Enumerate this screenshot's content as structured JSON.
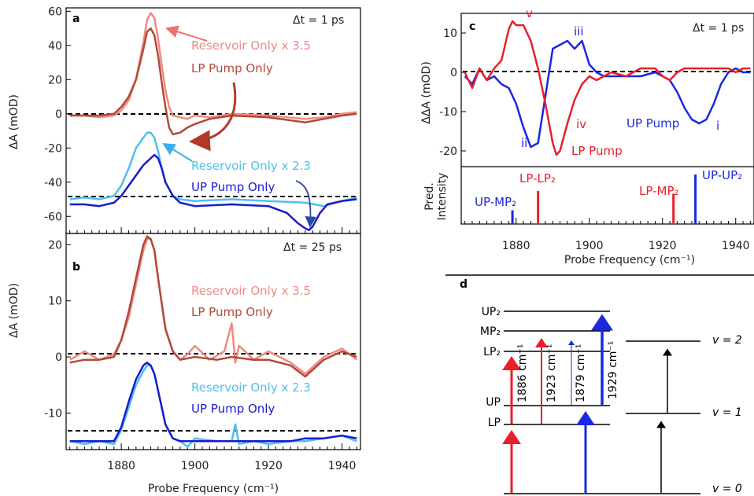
{
  "colors": {
    "res_lp": "#f08a82",
    "lp_pump": "#b04a38",
    "res_up": "#4ec0ee",
    "up_pump": "#1a1ad0",
    "red": "#e8202a",
    "blue": "#1a28e0",
    "brown_arrow": "#b03a28",
    "navy_arrow": "#2a4a9a",
    "lightblue_arrow": "#3ab0e8",
    "pink_arrow": "#f07070"
  },
  "panel_a": {
    "letter": "a",
    "time": "Δt = 1 ps",
    "ylabel": "ΔA (mOD)",
    "ann_res_lp": "Reservoir Only x 3.5",
    "ann_lp": "LP Pump Only",
    "ann_res_up": "Reservoir Only x 2.3",
    "ann_up": "UP Pump Only"
  },
  "panel_b": {
    "letter": "b",
    "time": "Δt = 25 ps",
    "ylabel": "ΔA (mOD)",
    "ann_res_lp": "Reservoir Only x 3.5",
    "ann_lp": "LP Pump Only",
    "ann_res_up": "Reservoir Only x 2.3",
    "ann_up": "UP Pump Only",
    "xlabel": "Probe Frequency (cm⁻¹)"
  },
  "panel_c": {
    "letter": "c",
    "time": "Δt = 1 ps",
    "ylabel": "ΔΔA (mOD)",
    "ylabel2_line1": "Pred.",
    "ylabel2_line2": "Intensity",
    "xlabel": "Probe Frequency (cm⁻¹)",
    "ann_up": "UP Pump",
    "ann_lp": "LP Pump",
    "roman_i": "i",
    "roman_ii": "ii",
    "roman_iii": "iii",
    "roman_iv": "iv",
    "roman_v": "v",
    "stick_up_mp2": "UP-MP₂",
    "stick_lp_lp2": "LP-LP₂",
    "stick_lp_mp2": "LP-MP₂",
    "stick_up_up2": "UP-UP₂"
  },
  "panel_d": {
    "letter": "d",
    "levels": [
      "UP₂",
      "MP₂",
      "LP₂",
      "UP",
      "LP"
    ],
    "v_labels": [
      "v = 2",
      "v = 1",
      "v = 0"
    ],
    "trans": [
      "1886 cm⁻¹",
      "1923 cm⁻¹",
      "1879 cm⁻¹",
      "1929 cm⁻¹"
    ]
  },
  "ticks": {
    "a_y": [
      "60",
      "40",
      "20",
      "0",
      "-20",
      "-40",
      "-60"
    ],
    "b_y": [
      "20",
      "10",
      "0",
      "-10"
    ],
    "c_y": [
      "10",
      "0",
      "-10",
      "-20"
    ],
    "x": [
      "1880",
      "1900",
      "1920",
      "1940"
    ]
  },
  "chart_data": [
    {
      "type": "line",
      "title": "Δt = 1 ps",
      "ylabel": "ΔA (mOD)",
      "xlim": [
        1865,
        1945
      ],
      "ylim": [
        -70,
        62
      ],
      "series": [
        {
          "name": "Reservoir Only x 3.5",
          "x": [
            1866,
            1870,
            1874,
            1878,
            1880,
            1882,
            1884,
            1886,
            1887,
            1888,
            1889,
            1890,
            1891,
            1892,
            1893,
            1894,
            1896,
            1898,
            1900,
            1904,
            1910,
            1920,
            1930,
            1935,
            1940,
            1944
          ],
          "y": [
            -1,
            -1,
            -2,
            -1,
            2,
            8,
            20,
            42,
            55,
            59,
            56,
            44,
            28,
            14,
            4,
            -1,
            -2,
            -3,
            -1,
            -2,
            0,
            -1,
            -3,
            -2,
            0,
            1
          ]
        },
        {
          "name": "LP Pump Only",
          "x": [
            1866,
            1870,
            1874,
            1878,
            1880,
            1882,
            1884,
            1886,
            1887,
            1888,
            1889,
            1890,
            1891,
            1892,
            1893,
            1894,
            1896,
            1898,
            1900,
            1904,
            1910,
            1920,
            1930,
            1935,
            1940,
            1944
          ],
          "y": [
            -1,
            -1,
            -1,
            0,
            4,
            10,
            20,
            38,
            48,
            50,
            46,
            34,
            18,
            4,
            -8,
            -12,
            -11,
            -8,
            -6,
            -3,
            -1,
            -2,
            -5,
            -3,
            -1,
            0
          ]
        },
        {
          "name": "Reservoir Only x 2.3",
          "x": [
            1866,
            1870,
            1874,
            1878,
            1880,
            1882,
            1884,
            1886,
            1887,
            1888,
            1889,
            1890,
            1891,
            1892,
            1894,
            1896,
            1900,
            1910,
            1920,
            1930,
            1935,
            1940,
            1944
          ],
          "y": [
            -50,
            -49,
            -50,
            -48,
            -42,
            -32,
            -20,
            -14,
            -11,
            -11,
            -14,
            -22,
            -32,
            -40,
            -48,
            -50,
            -51,
            -50,
            -51,
            -52,
            -54,
            -51,
            -49
          ]
        },
        {
          "name": "UP Pump Only",
          "x": [
            1866,
            1870,
            1874,
            1878,
            1880,
            1882,
            1884,
            1886,
            1888,
            1889,
            1890,
            1891,
            1892,
            1894,
            1896,
            1900,
            1910,
            1920,
            1925,
            1928,
            1930,
            1931,
            1932,
            1934,
            1936,
            1940,
            1944
          ],
          "y": [
            -53,
            -53,
            -54,
            -52,
            -48,
            -42,
            -36,
            -30,
            -26,
            -24,
            -26,
            -32,
            -40,
            -48,
            -52,
            -54,
            -53,
            -54,
            -58,
            -64,
            -67,
            -68,
            -66,
            -58,
            -53,
            -51,
            -50
          ]
        }
      ]
    },
    {
      "type": "line",
      "title": "Δt = 25 ps",
      "ylabel": "ΔA (mOD)",
      "xlim": [
        1865,
        1945
      ],
      "ylim": [
        -16.5,
        22
      ],
      "series": [
        {
          "name": "Reservoir Only x 3.5",
          "x": [
            1866,
            1870,
            1874,
            1878,
            1880,
            1882,
            1884,
            1886,
            1887,
            1888,
            1889,
            1890,
            1892,
            1894,
            1896,
            1898,
            1900,
            1904,
            1908,
            1910,
            1911,
            1912,
            1916,
            1920,
            1926,
            1930,
            1935,
            1940,
            1944
          ],
          "y": [
            -0.5,
            1,
            -0.5,
            0.5,
            3,
            7,
            13,
            19,
            21,
            21,
            19,
            14,
            5,
            1,
            -0.5,
            0.5,
            2,
            -0.5,
            1,
            6,
            -1,
            2,
            -0.5,
            1,
            -1,
            -3,
            0,
            1.5,
            -0.5
          ]
        },
        {
          "name": "LP Pump Only",
          "x": [
            1866,
            1870,
            1874,
            1878,
            1880,
            1882,
            1884,
            1886,
            1887,
            1888,
            1889,
            1890,
            1892,
            1894,
            1896,
            1900,
            1906,
            1910,
            1916,
            1920,
            1926,
            1930,
            1935,
            1940,
            1944
          ],
          "y": [
            -1,
            -0.5,
            -0.5,
            0,
            3,
            8,
            14,
            20,
            21.5,
            21,
            19,
            14,
            5,
            1,
            -0.5,
            0,
            -0.5,
            0,
            -0.5,
            -0.5,
            -1.5,
            -3.5,
            -0.5,
            1,
            0
          ]
        },
        {
          "name": "Reservoir Only x 2.3",
          "x": [
            1866,
            1870,
            1874,
            1878,
            1880,
            1882,
            1884,
            1886,
            1887,
            1888,
            1889,
            1890,
            1892,
            1894,
            1896,
            1898,
            1900,
            1906,
            1910,
            1911,
            1912,
            1916,
            1920,
            1926,
            1930,
            1935,
            1940,
            1944
          ],
          "y": [
            -15,
            -15.5,
            -15,
            -15.5,
            -13,
            -9,
            -5,
            -2.5,
            -1.5,
            -1.5,
            -3,
            -6,
            -12,
            -14.5,
            -15,
            -16,
            -14.5,
            -15,
            -15,
            -12,
            -15.5,
            -15,
            -15.5,
            -15,
            -15,
            -14.5,
            -14,
            -15
          ]
        },
        {
          "name": "UP Pump Only",
          "x": [
            1866,
            1870,
            1874,
            1878,
            1880,
            1882,
            1884,
            1886,
            1887,
            1888,
            1889,
            1890,
            1892,
            1894,
            1896,
            1900,
            1906,
            1910,
            1916,
            1920,
            1926,
            1930,
            1935,
            1940,
            1944
          ],
          "y": [
            -15,
            -15,
            -15,
            -15,
            -12.5,
            -8,
            -4,
            -1.5,
            -1,
            -1.5,
            -3,
            -6,
            -12,
            -14.5,
            -15,
            -15,
            -15,
            -15,
            -15,
            -15,
            -15,
            -14.5,
            -14.5,
            -14,
            -14.5
          ]
        }
      ]
    },
    {
      "type": "line",
      "title": "Δt = 1 ps",
      "ylabel": "ΔΔA (mOD)",
      "xlim": [
        1865,
        1945
      ],
      "ylim": [
        -24,
        15
      ],
      "series": [
        {
          "name": "UP Pump",
          "x": [
            1866,
            1868,
            1870,
            1872,
            1874,
            1876,
            1878,
            1880,
            1882,
            1884,
            1886,
            1888,
            1890,
            1892,
            1894,
            1896,
            1898,
            1900,
            1902,
            1904,
            1906,
            1910,
            1914,
            1918,
            1920,
            1922,
            1924,
            1926,
            1928,
            1930,
            1932,
            1934,
            1936,
            1938,
            1940,
            1942,
            1944
          ],
          "y": [
            -1,
            -3,
            1,
            -2,
            -1,
            -3,
            -4,
            -8,
            -14,
            -19,
            -18,
            -6,
            6,
            7,
            8,
            6,
            8,
            2,
            0,
            -1,
            -1,
            -1,
            -1,
            0,
            -1,
            -2,
            -5,
            -9,
            -12,
            -13,
            -12,
            -8,
            -3,
            0,
            1,
            0,
            0
          ]
        },
        {
          "name": "LP Pump",
          "x": [
            1866,
            1868,
            1870,
            1872,
            1874,
            1876,
            1878,
            1879,
            1880,
            1882,
            1884,
            1886,
            1888,
            1890,
            1891,
            1892,
            1894,
            1896,
            1898,
            1900,
            1902,
            1906,
            1910,
            1914,
            1918,
            1920,
            1922,
            1924,
            1926,
            1930,
            1934,
            1938,
            1940,
            1942,
            1944
          ],
          "y": [
            0,
            -4,
            1,
            -2,
            1,
            3,
            11,
            13,
            12,
            12,
            8,
            1,
            -8,
            -18,
            -21,
            -20,
            -13,
            -7,
            -3,
            -1,
            -2,
            0,
            -1,
            1,
            1,
            -1,
            -2,
            0,
            1,
            1,
            1,
            1,
            0,
            1,
            1
          ]
        }
      ]
    },
    {
      "type": "bar",
      "ylabel": "Pred. Intensity",
      "categories": [
        "UP-MP₂",
        "LP-LP₂",
        "LP-MP₂",
        "UP-UP₂"
      ],
      "x": [
        1879,
        1886,
        1923,
        1929
      ],
      "values": [
        0.25,
        0.6,
        0.55,
        0.9
      ]
    }
  ]
}
